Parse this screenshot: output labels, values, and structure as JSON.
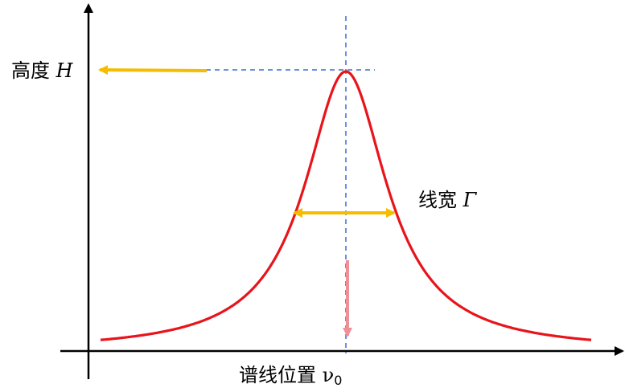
{
  "labels": {
    "height_text": "高度",
    "height_symbol": "H",
    "width_text": "线宽",
    "width_symbol": "Γ",
    "position_text": "谱线位置",
    "position_symbol": "ν",
    "position_subscript": "0"
  },
  "colors": {
    "curve": "#e8141b",
    "height_arrow": "#f5bd00",
    "width_arrow": "#f5bd00",
    "center_arrow": "#ef8f97",
    "guide_lines": "#3d6fd1",
    "axes": "#000000"
  },
  "curve_type": "lorentzian"
}
